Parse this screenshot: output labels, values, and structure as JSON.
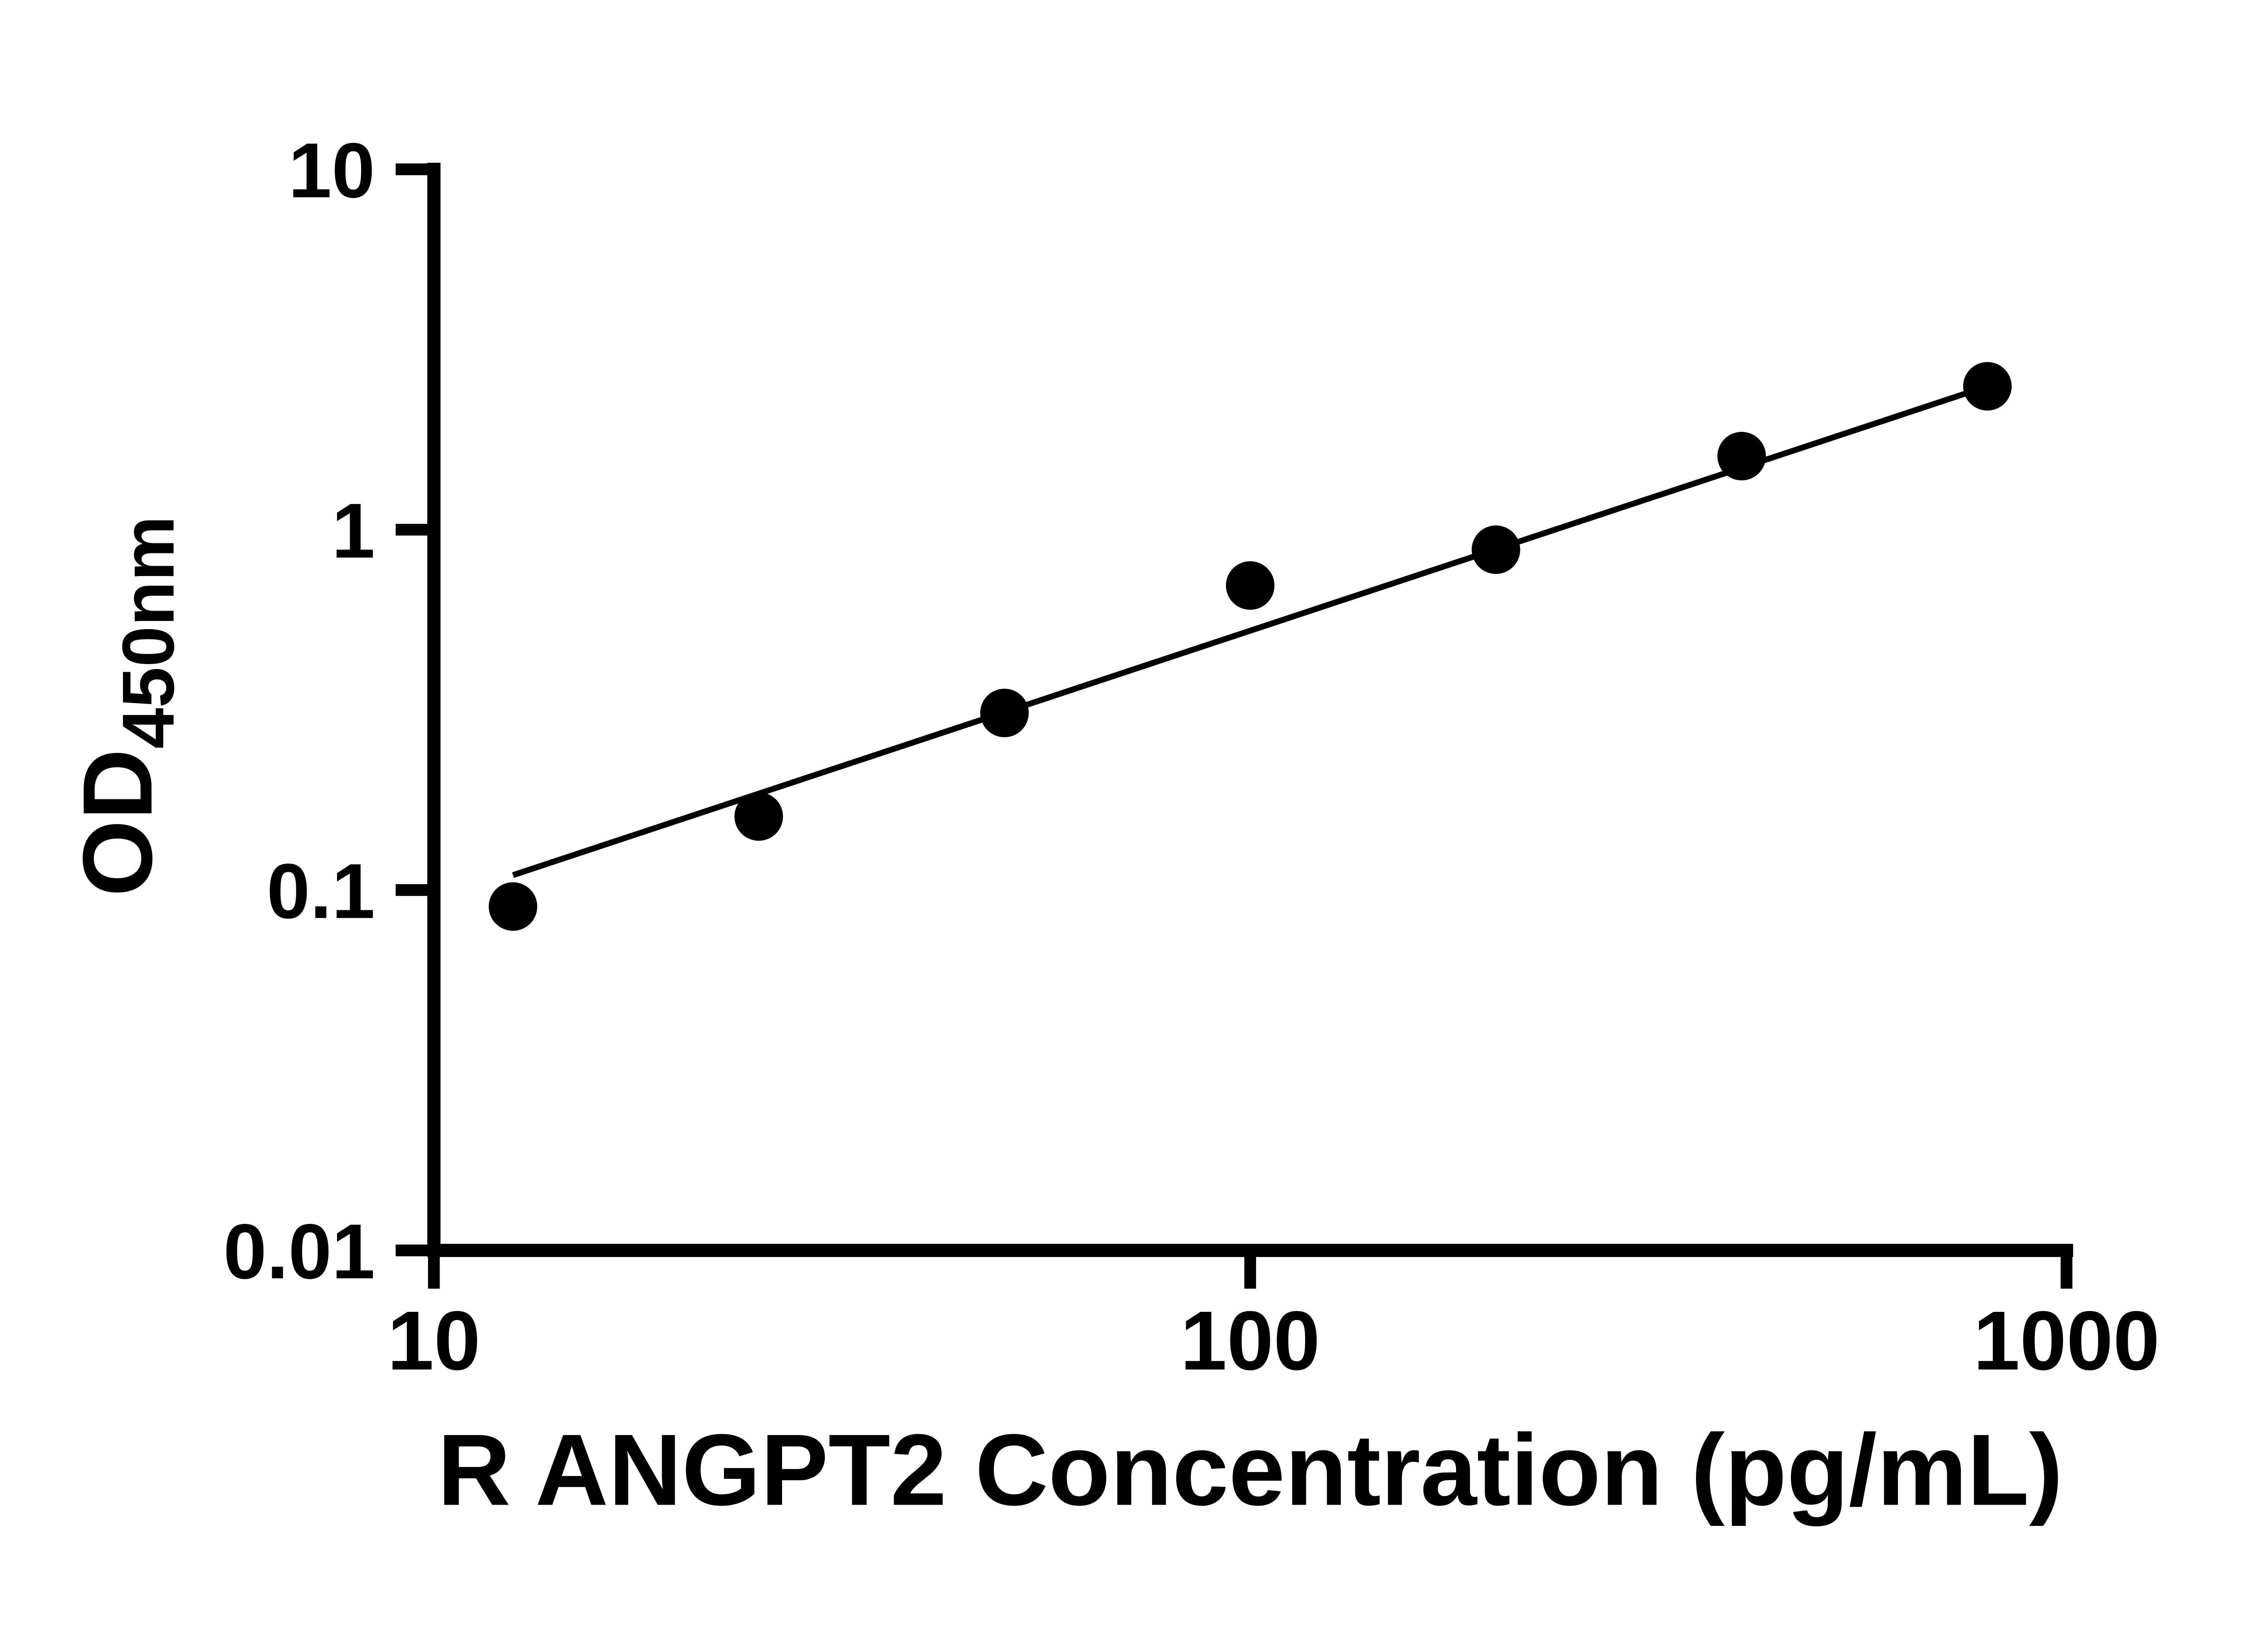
{
  "figure": {
    "background": "#ffffff"
  },
  "chart_data": {
    "type": "scatter",
    "title": "",
    "xlabel": "R ANGPT2 Concentration (pg/mL)",
    "ylabel_main": "OD",
    "ylabel_sub": "450nm",
    "x_scale": "log10",
    "y_scale": "log10",
    "xlim": [
      10,
      1000
    ],
    "ylim": [
      0.01,
      10
    ],
    "x_ticks": [
      10,
      100,
      1000
    ],
    "x_tick_labels": [
      "10",
      "100",
      "1000"
    ],
    "y_ticks": [
      0.01,
      0.1,
      1,
      10
    ],
    "y_tick_labels": [
      "0.01",
      "0.1",
      "1",
      "10"
    ],
    "grid": false,
    "legend": null,
    "axis_color": "#000000",
    "marker_color": "#000000",
    "line_color": "#000000",
    "points": [
      {
        "x": 12.5,
        "y": 0.09
      },
      {
        "x": 25,
        "y": 0.16
      },
      {
        "x": 50,
        "y": 0.31
      },
      {
        "x": 100,
        "y": 0.7
      },
      {
        "x": 200,
        "y": 0.88
      },
      {
        "x": 400,
        "y": 1.6
      },
      {
        "x": 800,
        "y": 2.5
      }
    ],
    "trendline": {
      "x1": 12.5,
      "y1": 0.11,
      "x2": 800,
      "y2": 2.5
    }
  }
}
